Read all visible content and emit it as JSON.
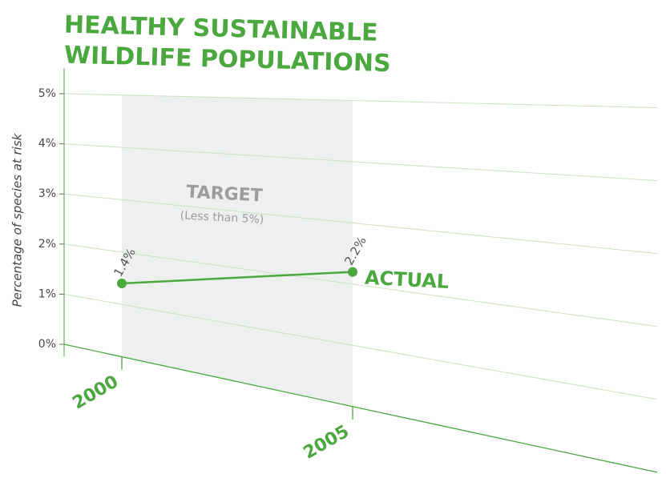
{
  "chart_data": {
    "type": "line",
    "title": [
      "HEALTHY SUSTAINABLE",
      "WILDLIFE POPULATIONS"
    ],
    "y_label": "Percentage of species at risk",
    "categories": [
      "2000",
      "2005"
    ],
    "series": [
      {
        "name": "ACTUAL",
        "color": "#4aa83f",
        "values": [
          1.4,
          2.2
        ],
        "value_labels": [
          "1.4%",
          "2.2%"
        ]
      }
    ],
    "target": {
      "label": "TARGET",
      "note": "(Less than 5%)",
      "value": 5
    },
    "ylim": [
      0,
      5.2
    ],
    "yticks": [
      {
        "value": 0,
        "label": "0%"
      },
      {
        "value": 1,
        "label": "1%"
      },
      {
        "value": 2,
        "label": "2%"
      },
      {
        "value": 3,
        "label": "3%"
      },
      {
        "value": 4,
        "label": "4%"
      },
      {
        "value": 5,
        "label": "5%"
      }
    ],
    "grid": true
  }
}
